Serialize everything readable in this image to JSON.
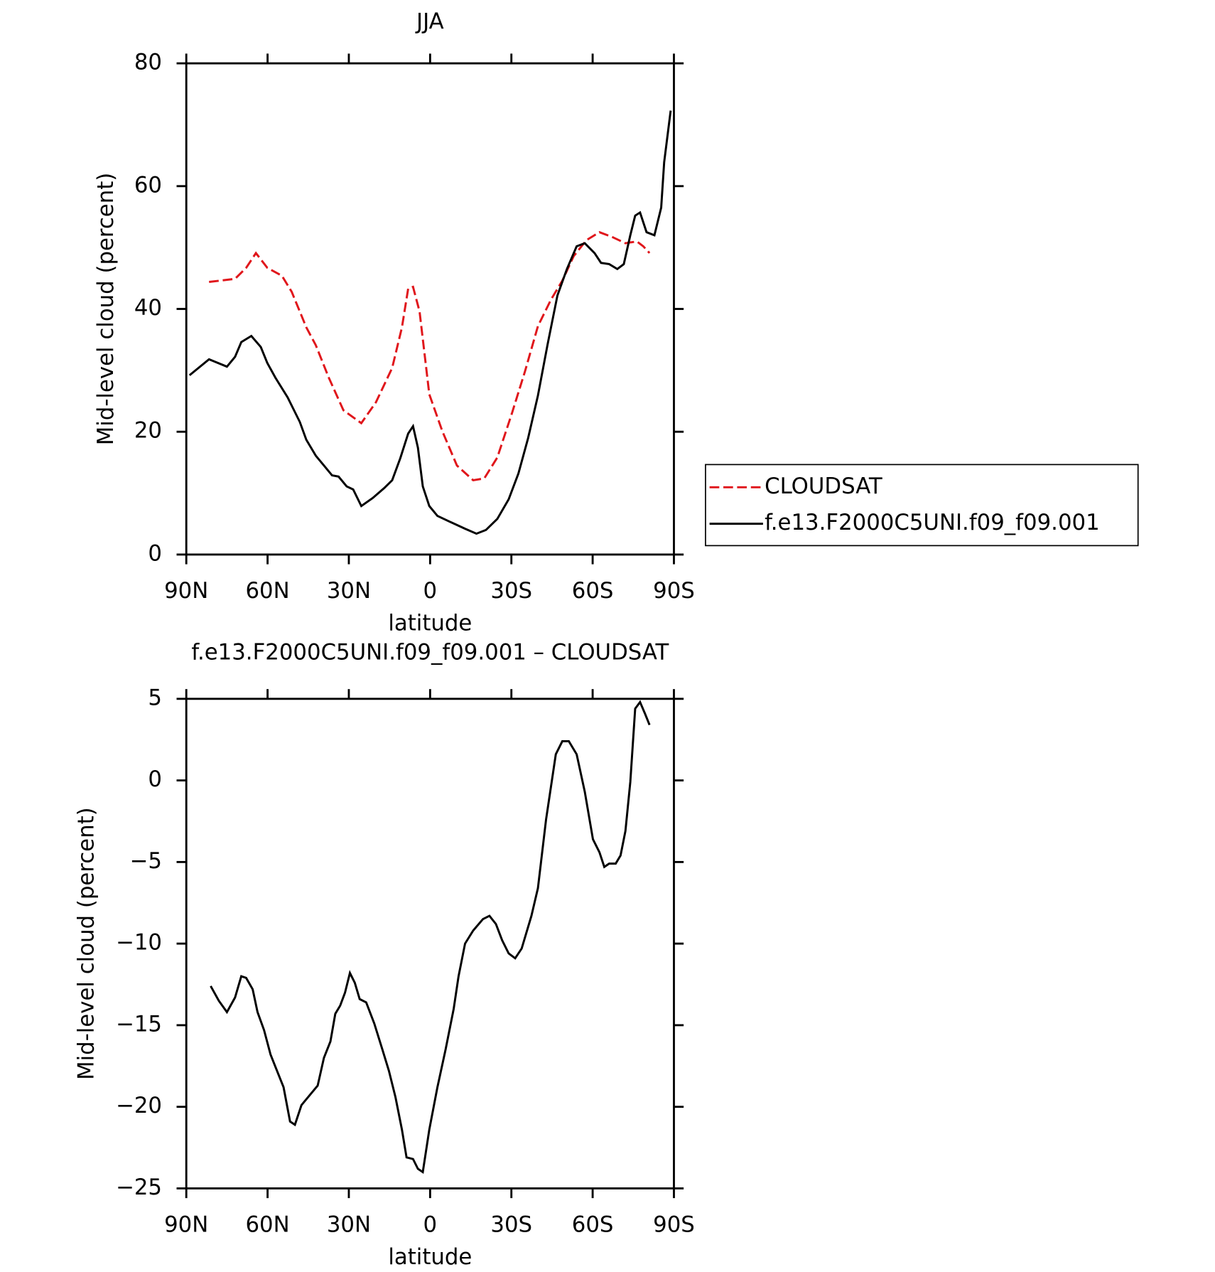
{
  "chart_data": [
    {
      "type": "line",
      "title": "JJA",
      "xlabel": "latitude",
      "ylabel": "Mid-level cloud (percent)",
      "xlim": [
        90,
        -90
      ],
      "xticks": [
        {
          "value": 90,
          "label": "90N"
        },
        {
          "value": 60,
          "label": "60N"
        },
        {
          "value": 30,
          "label": "30N"
        },
        0,
        {
          "value": -30,
          "label": "30S"
        },
        {
          "value": -60,
          "label": "60S"
        },
        {
          "value": -90,
          "label": "90S"
        }
      ],
      "ylim": [
        0,
        80
      ],
      "yticks": [
        0,
        20,
        40,
        60,
        80
      ],
      "legend": "outside-right",
      "series": [
        {
          "name": "CLOUDSAT",
          "color": "#e0161b",
          "dash": true,
          "x": [
            81.6,
            72,
            67.9,
            64.3,
            60.1,
            54.7,
            51.1,
            45.7,
            42.2,
            37.4,
            32,
            25.4,
            20,
            14,
            10.4,
            8.1,
            6.3,
            3.9,
            0.3,
            -4.5,
            -9.9,
            -15.9,
            -20,
            -24.8,
            -30.2,
            -35,
            -39.8,
            -44.6,
            -48.8,
            -53,
            -57.7,
            -62.5,
            -67.3,
            -72.1,
            -76.3,
            -78.7,
            -81
          ],
          "values": [
            44.4,
            44.9,
            46.7,
            49.1,
            46.7,
            45.4,
            42.8,
            37,
            34.1,
            28.8,
            23.5,
            21.4,
            24.8,
            30.4,
            37,
            43.3,
            43.6,
            39.6,
            26.1,
            20.1,
            14.5,
            12.1,
            12.4,
            15.8,
            23,
            29.8,
            37.2,
            41.5,
            44.6,
            48.6,
            51.2,
            52.5,
            51.7,
            50.7,
            51,
            50.2,
            49.1
          ]
        },
        {
          "name": "f.e13.F2000C5UNI.f09_f09.001",
          "color": "#000000",
          "dash": false,
          "x": [
            88.8,
            81.6,
            75,
            72,
            69.7,
            66,
            62.5,
            60.1,
            57.1,
            52.6,
            48.1,
            45.7,
            42.2,
            39.2,
            36.2,
            33.8,
            30.8,
            28.4,
            25.4,
            21.2,
            17,
            14,
            11,
            8.1,
            6.3,
            4.5,
            2.7,
            0.3,
            -2.7,
            -7.5,
            -12.9,
            -17.1,
            -20.6,
            -24.8,
            -29,
            -32.6,
            -36.2,
            -39.8,
            -43.4,
            -47,
            -50.5,
            -54.1,
            -57.1,
            -60.7,
            -63.1,
            -66.1,
            -69.1,
            -71.5,
            -73.9,
            -75.7,
            -77.5,
            -79.9,
            -82.8,
            -85.3,
            -86.4,
            -88.8
          ],
          "values": [
            29.2,
            31.8,
            30.6,
            32.2,
            34.6,
            35.6,
            33.8,
            31.2,
            28.8,
            25.6,
            21.6,
            18.7,
            16.1,
            14.5,
            12.9,
            12.7,
            11.1,
            10.6,
            7.9,
            9.2,
            10.8,
            12.1,
            15.7,
            19.7,
            20.9,
            17.4,
            11.1,
            7.9,
            6.3,
            5.3,
            4.2,
            3.4,
            4,
            5.8,
            9,
            13.2,
            19,
            25.9,
            34.3,
            42.2,
            46.5,
            50.2,
            50.7,
            49.1,
            47.5,
            47.3,
            46.5,
            47.3,
            52,
            55.2,
            55.7,
            52.5,
            52,
            56.5,
            63.9,
            72.3
          ]
        }
      ]
    },
    {
      "type": "line",
      "title": "f.e13.F2000C5UNI.f09_f09.001 – CLOUDSAT",
      "xlabel": "latitude",
      "ylabel": "Mid-level cloud (percent)",
      "xlim": [
        90,
        -90
      ],
      "xticks": [
        {
          "value": 90,
          "label": "90N"
        },
        {
          "value": 60,
          "label": "60N"
        },
        {
          "value": 30,
          "label": "30N"
        },
        0,
        {
          "value": -30,
          "label": "30S"
        },
        {
          "value": -60,
          "label": "60S"
        },
        {
          "value": -90,
          "label": "90S"
        }
      ],
      "ylim": [
        -25,
        5
      ],
      "yticks": [
        {
          "value": -25,
          "label": "−25"
        },
        {
          "value": -20,
          "label": "−20"
        },
        {
          "value": -15,
          "label": "−15"
        },
        {
          "value": -10,
          "label": "−10"
        },
        {
          "value": -5,
          "label": "−5"
        },
        0,
        5
      ],
      "series": [
        {
          "color": "#000000",
          "dash": false,
          "x": [
            81,
            78,
            75,
            72,
            69.7,
            67.9,
            65.5,
            63.7,
            61.3,
            58.9,
            56.5,
            54.1,
            51.7,
            49.9,
            47.5,
            44.5,
            41.5,
            39.2,
            36.8,
            35,
            33.2,
            31.4,
            29.6,
            27.8,
            26,
            23.6,
            20.6,
            17.6,
            15.2,
            12.8,
            10.4,
            8.7,
            6.3,
            4.5,
            2.7,
            0.3,
            -2.7,
            -5.7,
            -8.7,
            -10.5,
            -12.9,
            -15.9,
            -19.5,
            -21.9,
            -24.3,
            -26.6,
            -29,
            -31.4,
            -33.8,
            -37.4,
            -39.8,
            -42.8,
            -46.4,
            -48.8,
            -51.2,
            -54.1,
            -57.1,
            -60.1,
            -62.5,
            -64.3,
            -66.1,
            -68.5,
            -70.3,
            -72.1,
            -73.9,
            -75.7,
            -77.5,
            -79.3,
            -81
          ],
          "values": [
            -12.6,
            -13.5,
            -14.2,
            -13.3,
            -12,
            -12.1,
            -12.8,
            -14.2,
            -15.3,
            -16.8,
            -17.8,
            -18.8,
            -20.9,
            -21.1,
            -19.9,
            -19.3,
            -18.7,
            -17,
            -16,
            -14.3,
            -13.8,
            -13,
            -11.8,
            -12.4,
            -13.4,
            -13.6,
            -14.9,
            -16.5,
            -17.8,
            -19.4,
            -21.4,
            -23.1,
            -23.2,
            -23.8,
            -24,
            -21.4,
            -18.8,
            -16.5,
            -14,
            -12,
            -10,
            -9.2,
            -8.5,
            -8.3,
            -8.8,
            -9.8,
            -10.6,
            -10.9,
            -10.3,
            -8.3,
            -6.6,
            -2.4,
            1.6,
            2.4,
            2.4,
            1.6,
            -0.7,
            -3.6,
            -4.4,
            -5.3,
            -5.1,
            -5.1,
            -4.6,
            -3.1,
            -0.1,
            4.4,
            4.8,
            4.1,
            3.4
          ]
        }
      ]
    }
  ]
}
